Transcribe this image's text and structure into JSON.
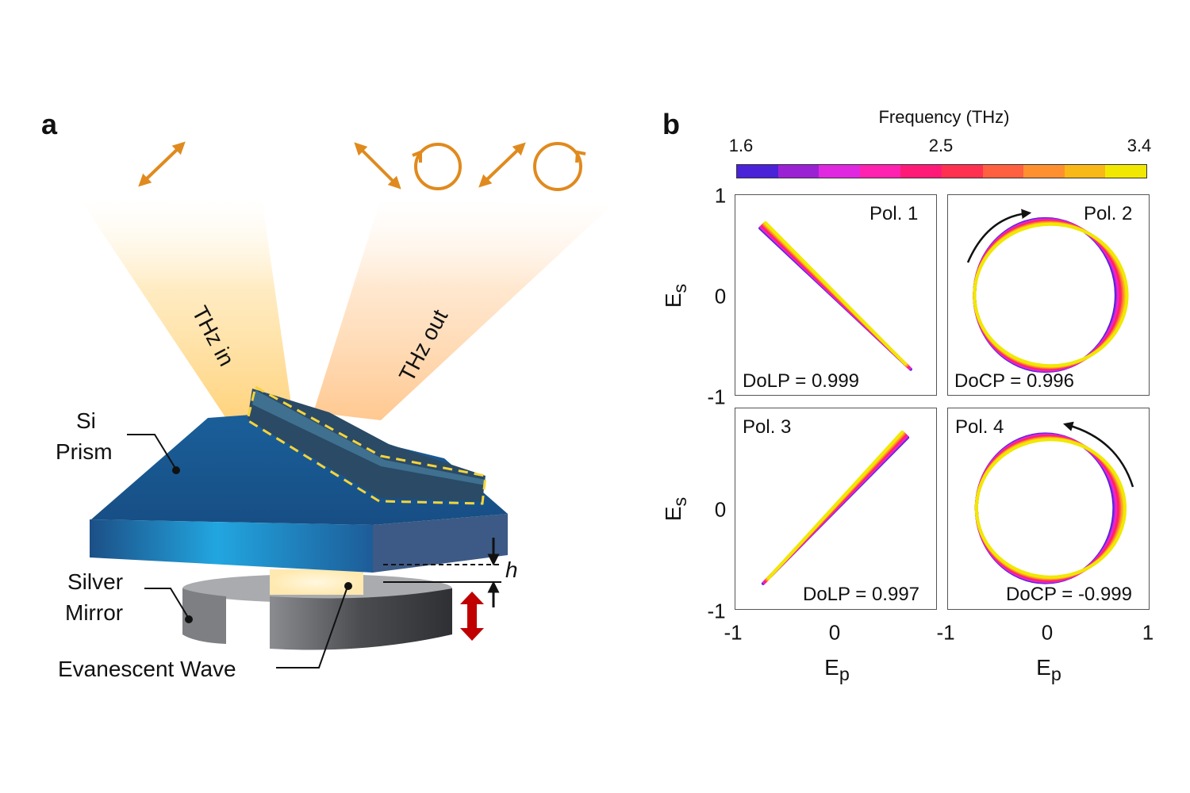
{
  "panel_a": {
    "label": "a",
    "beam_in_label": "THz in",
    "beam_out_label": "THz out",
    "prism_label_line1": "Si",
    "prism_label_line2": "Prism",
    "mirror_label_line1": "Silver",
    "mirror_label_line2": "Mirror",
    "wave_label": "Evanescent Wave",
    "gap_label": "h",
    "colors": {
      "polarization_icons": "#e08a1e",
      "prism": "#1f5a8e",
      "mirror": "#55575b",
      "sample_outline": "#f5d43a",
      "motion_arrow": "#c00000"
    },
    "polarization_icons": [
      "linear-diagonal-arrow-icon",
      "linear-antidiagonal-arrow-icon",
      "circular-arrow-icon",
      "linear-diagonal-arrow-icon",
      "circular-arrow-icon"
    ]
  },
  "panel_b": {
    "label": "b",
    "colorbar": {
      "title": "Frequency (THz)",
      "min_label": "1.6",
      "mid_label": "2.5",
      "max_label": "3.4",
      "range": [
        1.6,
        3.4
      ],
      "colors": [
        "#4a22d8",
        "#9a22d4",
        "#e028e0",
        "#ff22b0",
        "#ff1a78",
        "#ff3050",
        "#ff6040",
        "#ff9030",
        "#f8b818",
        "#f0e800"
      ]
    },
    "y_axis_label": "E",
    "y_axis_sub": "s",
    "x_axis_label": "E",
    "x_axis_sub": "p",
    "y_ticks_top": [
      "1",
      "0",
      "-1"
    ],
    "y_ticks_bottom": [
      "0",
      "-1"
    ],
    "x_ticks": [
      "-1",
      "0",
      "-1",
      "0",
      "1"
    ]
  },
  "chart_data": [
    {
      "type": "line",
      "title": "Pol. 1",
      "annotation": "DoLP = 0.999",
      "shape": "linear",
      "from": [
        -0.72,
        0.69
      ],
      "to": [
        0.72,
        -0.71
      ],
      "xlim": [
        -1,
        1
      ],
      "ylim": [
        -1,
        1
      ],
      "xlabel": "Ep",
      "ylabel": "Es"
    },
    {
      "type": "line",
      "title": "Pol. 2",
      "annotation": "DoCP = 0.996",
      "shape": "circular",
      "radius": 0.73,
      "handedness": "clockwise",
      "xlim": [
        -1,
        1
      ],
      "ylim": [
        -1,
        1
      ],
      "xlabel": "Ep",
      "ylabel": "Es"
    },
    {
      "type": "line",
      "title": "Pol. 3",
      "annotation": "DoLP = 0.997",
      "shape": "linear",
      "from": [
        -0.69,
        -0.72
      ],
      "to": [
        0.69,
        0.73
      ],
      "xlim": [
        -1,
        1
      ],
      "ylim": [
        -1,
        1
      ],
      "xlabel": "Ep",
      "ylabel": "Es"
    },
    {
      "type": "line",
      "title": "Pol. 4",
      "annotation": "DoCP = -0.999",
      "shape": "circular",
      "radius": 0.71,
      "handedness": "counterclockwise",
      "xlim": [
        -1,
        1
      ],
      "ylim": [
        -1,
        1
      ],
      "xlabel": "Ep",
      "ylabel": "Es"
    }
  ]
}
